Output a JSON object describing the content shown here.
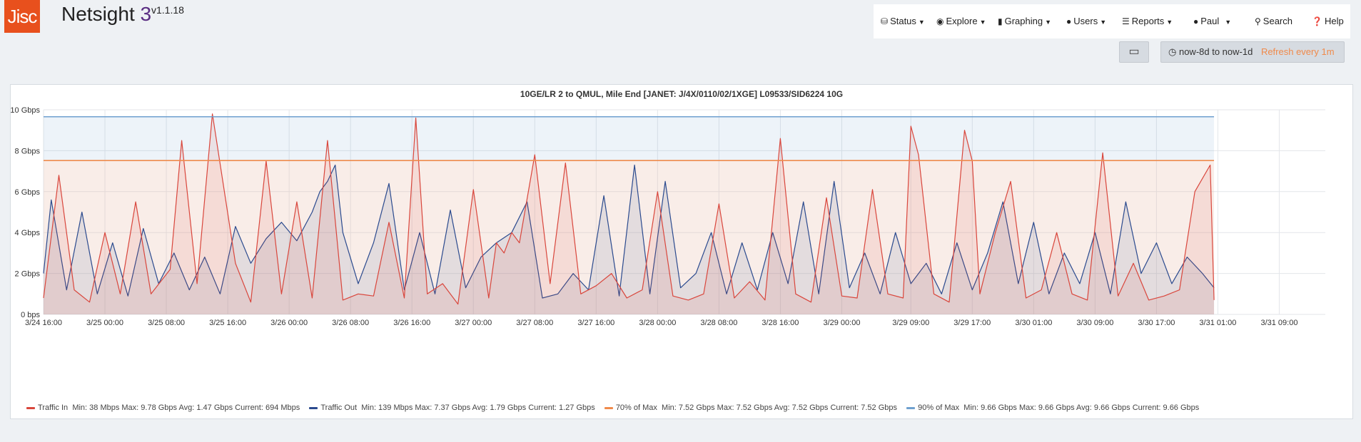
{
  "app": {
    "logo": "Jisc",
    "name": "Netsight",
    "name_num": "3",
    "version": "v1.1.18"
  },
  "nav": [
    {
      "id": "status",
      "label": "Status",
      "icon": "database-icon",
      "caret": true
    },
    {
      "id": "explore",
      "label": "Explore",
      "icon": "globe-icon",
      "caret": true
    },
    {
      "id": "graphing",
      "label": "Graphing",
      "icon": "signal-icon",
      "caret": true
    },
    {
      "id": "users",
      "label": "Users",
      "icon": "user-icon",
      "caret": true
    },
    {
      "id": "reports",
      "label": "Reports",
      "icon": "list-icon",
      "caret": true
    },
    {
      "id": "paul",
      "label": "Paul",
      "icon": "user-icon",
      "caret": true
    },
    {
      "id": "search",
      "label": "Search",
      "icon": "search-icon",
      "caret": false
    },
    {
      "id": "help",
      "label": "Help",
      "icon": "question-circle-icon",
      "caret": false
    }
  ],
  "controls": {
    "screen_icon": "monitor-icon",
    "range_icon": "clock-icon",
    "range": "now-8d to now-1d",
    "refresh": "Refresh every 1m"
  },
  "chart_data": {
    "type": "line",
    "title": "10GE/LR 2 to QMUL, Mile End [JANET: J/4X/0110/02/1XGE] L09533/SID6224 10G",
    "y_tick_labels": [
      "0 bps",
      "2 Gbps",
      "4 Gbps",
      "6 Gbps",
      "8 Gbps",
      "10 Gbps"
    ],
    "y_ticks": [
      0,
      2,
      4,
      6,
      8,
      10
    ],
    "y_unit": "Gbps",
    "ylim": [
      0,
      10
    ],
    "x_tick_labels": [
      "3/24 16:00",
      "3/25 00:00",
      "3/25 08:00",
      "3/25 16:00",
      "3/26 00:00",
      "3/26 08:00",
      "3/26 16:00",
      "3/27 00:00",
      "3/27 08:00",
      "3/27 16:00",
      "3/28 00:00",
      "3/28 08:00",
      "3/28 16:00",
      "3/29 00:00",
      "3/29 09:00",
      "3/29 17:00",
      "3/30 01:00",
      "3/30 09:00",
      "3/30 17:00",
      "3/31 01:00",
      "3/31 09:00"
    ],
    "x_ticks": [
      0,
      8,
      16,
      24,
      32,
      40,
      48,
      56,
      64,
      72,
      80,
      88,
      96,
      104,
      113,
      121,
      129,
      137,
      145,
      153,
      161
    ],
    "x_unit": "hours since 3/24 16:00",
    "xlim": [
      0,
      167
    ],
    "grid": true,
    "legend_position": "bottom",
    "series": [
      {
        "name": "Traffic In",
        "color": "#d9463c",
        "stats": "Min: 38 Mbps   Max: 9.78 Gbps   Avg: 1.47 Gbps   Current: 694 Mbps",
        "x": [
          0,
          2,
          4,
          6,
          8,
          10,
          12,
          14,
          16.5,
          18,
          20,
          22,
          25,
          27,
          29,
          31,
          33,
          35,
          37,
          39,
          41,
          43,
          45,
          47,
          48.5,
          50,
          52,
          54,
          56,
          58,
          59,
          60,
          61,
          62,
          64,
          66,
          68,
          70,
          72,
          74,
          76,
          78,
          80,
          82,
          84,
          86,
          88,
          90,
          92,
          94,
          96,
          98,
          100,
          102,
          104,
          106,
          108,
          110,
          112,
          113,
          114,
          116,
          118,
          120,
          121,
          122,
          124,
          126,
          128,
          130,
          132,
          134,
          136,
          138,
          140,
          142,
          144,
          146,
          148,
          150,
          152,
          152.5
        ],
        "y": [
          0.8,
          6.8,
          1.2,
          0.6,
          4.0,
          1.0,
          5.5,
          1.0,
          2.2,
          8.5,
          1.5,
          9.8,
          2.5,
          0.6,
          7.5,
          1.0,
          5.5,
          0.8,
          8.5,
          0.7,
          1.0,
          0.9,
          4.5,
          0.8,
          9.6,
          1.0,
          1.5,
          0.5,
          6.1,
          0.8,
          3.5,
          3.0,
          4.0,
          3.5,
          7.8,
          1.5,
          7.4,
          1.0,
          1.4,
          2.0,
          0.8,
          1.2,
          6.0,
          0.9,
          0.7,
          1.0,
          5.4,
          0.8,
          1.6,
          0.7,
          8.6,
          1.0,
          0.6,
          5.7,
          0.9,
          0.8,
          6.1,
          1.0,
          0.8,
          9.2,
          7.8,
          1.0,
          0.6,
          9.0,
          7.5,
          1.0,
          4.0,
          6.5,
          0.8,
          1.2,
          4.0,
          1.0,
          0.7,
          7.9,
          0.9,
          2.5,
          0.7,
          0.9,
          1.2,
          6.0,
          7.3,
          0.7
        ]
      },
      {
        "name": "Traffic Out",
        "color": "#2b4a8e",
        "stats": "Min: 139 Mbps   Max: 7.37 Gbps   Avg: 1.79 Gbps   Current: 1.27 Gbps",
        "x": [
          0,
          1,
          3,
          5,
          7,
          9,
          11,
          13,
          15,
          17,
          19,
          21,
          23,
          25,
          27,
          29,
          31,
          33,
          35,
          36,
          37,
          38,
          39,
          41,
          43,
          45,
          47,
          49,
          51,
          53,
          55,
          57,
          59,
          61,
          63,
          65,
          67,
          69,
          71,
          73,
          75,
          77,
          79,
          81,
          83,
          85,
          87,
          89,
          91,
          93,
          95,
          97,
          99,
          101,
          103,
          105,
          107,
          109,
          111,
          113,
          115,
          117,
          119,
          121,
          123,
          125,
          127,
          129,
          131,
          133,
          135,
          137,
          139,
          141,
          143,
          145,
          147,
          149,
          151,
          152.5
        ],
        "y": [
          2.0,
          5.6,
          1.2,
          5.0,
          1.0,
          3.5,
          0.9,
          4.2,
          1.5,
          3.0,
          1.2,
          2.8,
          1.0,
          4.3,
          2.5,
          3.7,
          4.5,
          3.6,
          5.0,
          6.0,
          6.5,
          7.3,
          4.0,
          1.5,
          3.5,
          6.4,
          1.2,
          4.0,
          1.0,
          5.1,
          1.3,
          2.8,
          3.5,
          4.0,
          5.5,
          0.8,
          1.0,
          2.0,
          1.2,
          5.8,
          0.9,
          7.3,
          1.0,
          6.5,
          1.3,
          2.0,
          4.0,
          1.0,
          3.5,
          1.2,
          4.0,
          1.5,
          5.5,
          1.0,
          6.5,
          1.3,
          3.0,
          1.0,
          4.0,
          1.5,
          2.5,
          1.0,
          3.5,
          1.2,
          3.0,
          5.5,
          1.5,
          4.5,
          1.0,
          3.0,
          1.5,
          4.0,
          1.0,
          5.5,
          2.0,
          3.5,
          1.5,
          2.8,
          2.0,
          1.3
        ]
      },
      {
        "name": "70% of Max",
        "color": "#f08a4b",
        "stats": "Min: 7.52 Gbps   Max: 7.52 Gbps   Avg: 7.52 Gbps   Current: 7.52 Gbps",
        "x": [
          0,
          152.5
        ],
        "y": [
          7.52,
          7.52
        ]
      },
      {
        "name": "90% of Max",
        "color": "#6fa0cf",
        "stats": "Min: 9.66 Gbps   Max: 9.66 Gbps   Avg: 9.66 Gbps   Current: 9.66 Gbps",
        "x": [
          0,
          152.5
        ],
        "y": [
          9.66,
          9.66
        ]
      }
    ]
  }
}
